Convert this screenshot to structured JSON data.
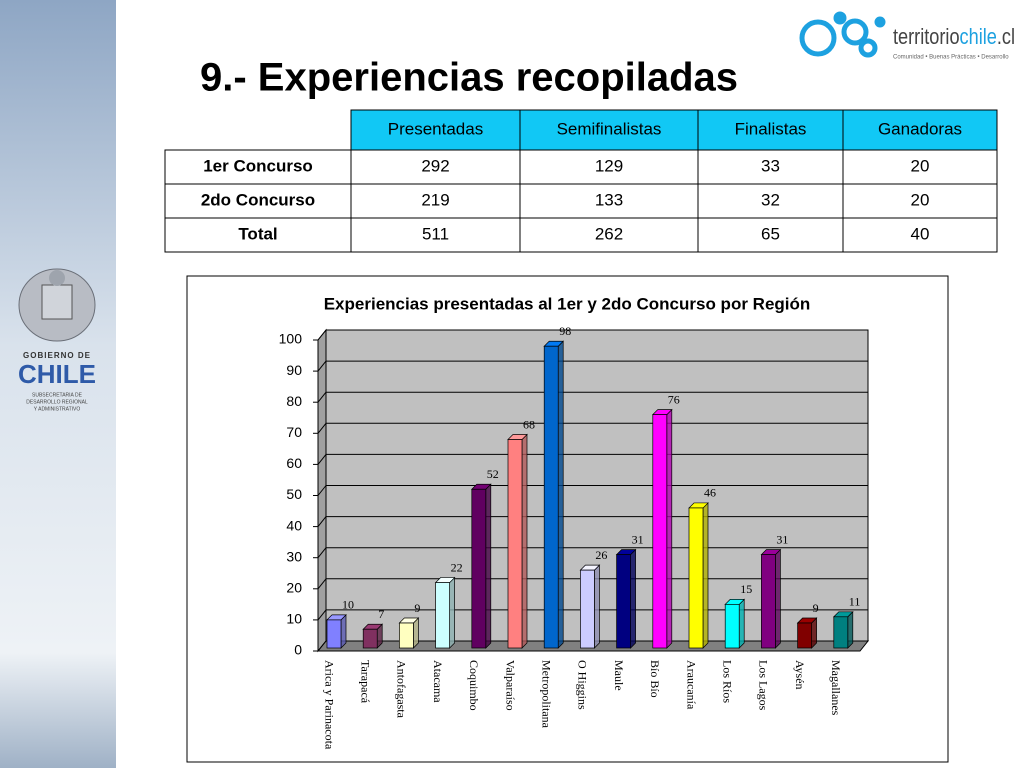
{
  "title": "9.- Experiencias recopiladas",
  "logo": {
    "parts": [
      "territorio",
      "chile",
      ".cl"
    ],
    "tagline": "Comunidad • Buenas Prácticas • Desarrollo"
  },
  "sidebar": {
    "lines": [
      "GOBIERNO DE",
      "CHILE",
      "SUBSECRETARIA DE",
      "DESARROLLO REGIONAL",
      "Y ADMINISTRATIVO"
    ]
  },
  "table": {
    "header": [
      "Presentadas",
      "Semifinalistas",
      "Finalistas",
      "Ganadoras"
    ],
    "rows": [
      {
        "label": "1er Concurso",
        "cells": [
          292,
          129,
          33,
          20
        ]
      },
      {
        "label": "2do Concurso",
        "cells": [
          219,
          133,
          32,
          20
        ]
      },
      {
        "label": "Total",
        "cells": [
          511,
          262,
          65,
          40
        ]
      }
    ]
  },
  "chart_data": {
    "type": "bar",
    "title": "Experiencias presentadas al 1er y 2do Concurso por Región",
    "categories": [
      "Arica y Parinacota",
      "Tarapacá",
      "Antofagasta",
      "Atacama",
      "Coquimbo",
      "Valparaíso",
      "Metropolitana",
      "O Higgins",
      "Maule",
      "Bío Bío",
      "Araucanía",
      "Los Ríos",
      "Los Lagos",
      "Aysén",
      "Magallanes"
    ],
    "values": [
      10,
      7,
      9,
      22,
      52,
      68,
      98,
      26,
      31,
      76,
      46,
      15,
      31,
      9,
      11
    ],
    "colors": [
      "#8080ff",
      "#803060",
      "#ffffc0",
      "#ccffff",
      "#600060",
      "#ff8080",
      "#0066cc",
      "#ccccff",
      "#000080",
      "#ff00ff",
      "#ffff00",
      "#00ffff",
      "#800080",
      "#800000",
      "#008080"
    ],
    "ylim": [
      0,
      100
    ],
    "yticks": [
      0,
      10,
      20,
      30,
      40,
      50,
      60,
      70,
      80,
      90,
      100
    ],
    "grid": true
  }
}
